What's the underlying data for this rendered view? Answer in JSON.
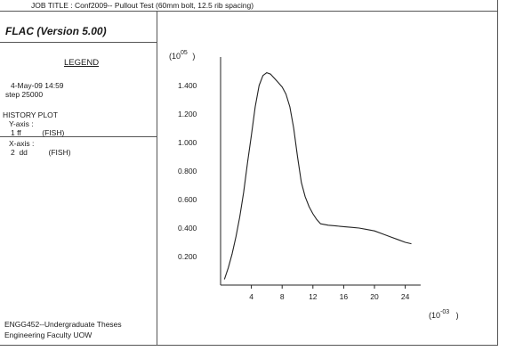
{
  "header": {
    "job_title": "JOB TITLE : Conf2009-- Pullout Test (60mm bolt, 12.5 rib spacing)"
  },
  "left_panel": {
    "program_title": "FLAC (Version 5.00)",
    "legend_title": "LEGEND",
    "date_line": "4-May-09  14:59",
    "step_line": "step   25000",
    "history_title": "HISTORY PLOT",
    "y_axis_label": "Y-axis :",
    "y_axis_item": "1 ff          (FISH)",
    "x_axis_label": "X-axis :",
    "x_axis_item": "2  dd          (FISH)",
    "footer_line1": "ENGG452--Undergraduate Theses",
    "footer_line2": "Engineering Faculty UOW"
  },
  "chart_data": {
    "type": "line",
    "y_multiplier": "(10",
    "y_multiplier_exp": "05",
    "x_multiplier": "(10",
    "x_multiplier_exp": "-03",
    "xlim": [
      0,
      26
    ],
    "ylim": [
      0,
      1.6
    ],
    "x_ticks": [
      4,
      8,
      12,
      16,
      20,
      24
    ],
    "x_tick_labels": [
      "4",
      "8",
      "12",
      "16",
      "20",
      "24"
    ],
    "y_ticks": [
      0.2,
      0.4,
      0.6,
      0.8,
      1.0,
      1.2,
      1.4
    ],
    "y_tick_labels": [
      "0.200",
      "0.400",
      "0.600",
      "0.800",
      "1.000",
      "1.200",
      "1.400"
    ],
    "grid": false,
    "series": [
      {
        "color": "#222222",
        "x": [
          0.5,
          1.0,
          1.5,
          2.0,
          2.5,
          3.0,
          3.5,
          4.0,
          4.5,
          5.0,
          5.5,
          6.0,
          6.5,
          7.0,
          7.5,
          8.0,
          8.5,
          9.0,
          9.5,
          10.0,
          10.5,
          11.0,
          11.5,
          12.0,
          12.5,
          13.0,
          14.0,
          15.0,
          16.0,
          17.0,
          18.0,
          19.0,
          20.0,
          21.0,
          22.0,
          23.0,
          24.0,
          24.8
        ],
        "y": [
          0.04,
          0.12,
          0.22,
          0.34,
          0.48,
          0.65,
          0.86,
          1.05,
          1.25,
          1.4,
          1.47,
          1.49,
          1.48,
          1.45,
          1.42,
          1.39,
          1.34,
          1.25,
          1.1,
          0.9,
          0.72,
          0.62,
          0.55,
          0.5,
          0.46,
          0.43,
          0.42,
          0.415,
          0.41,
          0.405,
          0.4,
          0.39,
          0.38,
          0.36,
          0.34,
          0.32,
          0.3,
          0.29
        ]
      }
    ]
  }
}
